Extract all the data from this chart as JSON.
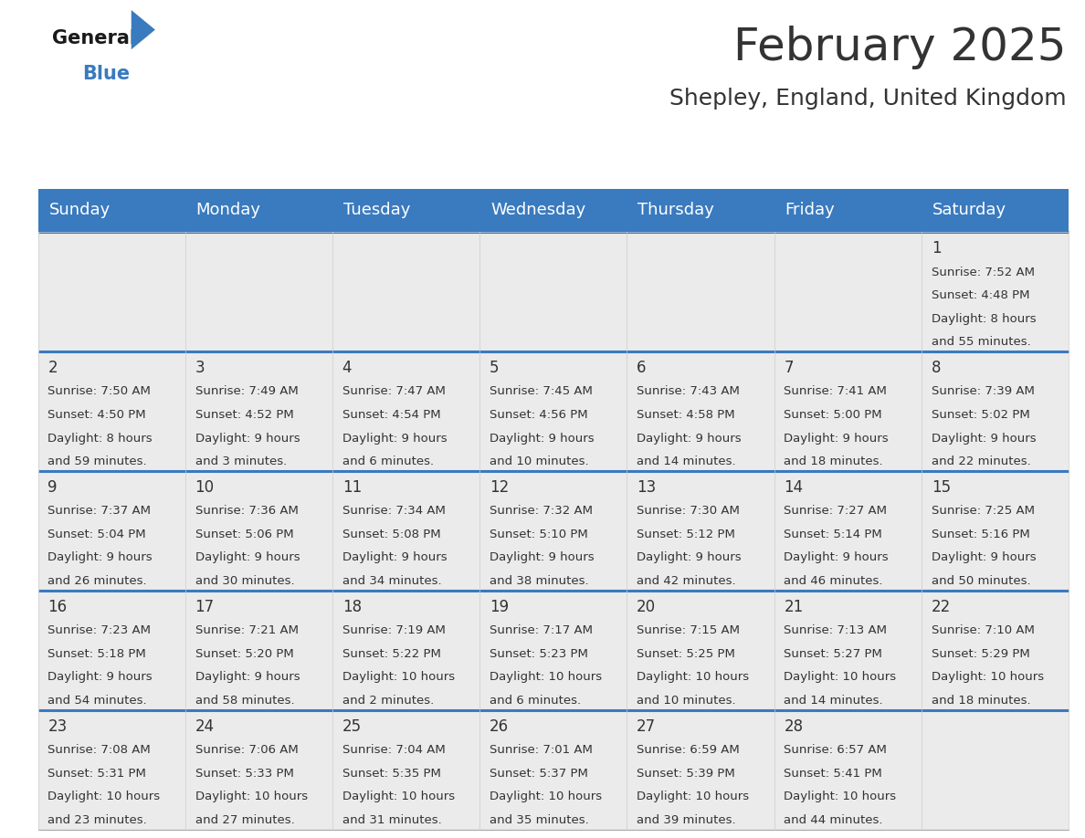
{
  "title": "February 2025",
  "subtitle": "Shepley, England, United Kingdom",
  "header_color": "#3a7abf",
  "header_text_color": "#ffffff",
  "day_names": [
    "Sunday",
    "Monday",
    "Tuesday",
    "Wednesday",
    "Thursday",
    "Friday",
    "Saturday"
  ],
  "title_fontsize": 36,
  "subtitle_fontsize": 18,
  "header_fontsize": 13,
  "cell_num_fontsize": 12,
  "cell_text_fontsize": 9.5,
  "background_color": "#ffffff",
  "cell_bg_color": "#ebebeb",
  "text_color": "#333333",
  "divider_color": "#3a7abf",
  "logo_general_color": "#1a1a1a",
  "logo_blue_color": "#3a7abf",
  "calendar_data": [
    {
      "day": 1,
      "row": 0,
      "col": 6,
      "sunrise": "7:52 AM",
      "sunset": "4:48 PM",
      "daylight": "8 hours and 55 minutes."
    },
    {
      "day": 2,
      "row": 1,
      "col": 0,
      "sunrise": "7:50 AM",
      "sunset": "4:50 PM",
      "daylight": "8 hours and 59 minutes."
    },
    {
      "day": 3,
      "row": 1,
      "col": 1,
      "sunrise": "7:49 AM",
      "sunset": "4:52 PM",
      "daylight": "9 hours and 3 minutes."
    },
    {
      "day": 4,
      "row": 1,
      "col": 2,
      "sunrise": "7:47 AM",
      "sunset": "4:54 PM",
      "daylight": "9 hours and 6 minutes."
    },
    {
      "day": 5,
      "row": 1,
      "col": 3,
      "sunrise": "7:45 AM",
      "sunset": "4:56 PM",
      "daylight": "9 hours and 10 minutes."
    },
    {
      "day": 6,
      "row": 1,
      "col": 4,
      "sunrise": "7:43 AM",
      "sunset": "4:58 PM",
      "daylight": "9 hours and 14 minutes."
    },
    {
      "day": 7,
      "row": 1,
      "col": 5,
      "sunrise": "7:41 AM",
      "sunset": "5:00 PM",
      "daylight": "9 hours and 18 minutes."
    },
    {
      "day": 8,
      "row": 1,
      "col": 6,
      "sunrise": "7:39 AM",
      "sunset": "5:02 PM",
      "daylight": "9 hours and 22 minutes."
    },
    {
      "day": 9,
      "row": 2,
      "col": 0,
      "sunrise": "7:37 AM",
      "sunset": "5:04 PM",
      "daylight": "9 hours and 26 minutes."
    },
    {
      "day": 10,
      "row": 2,
      "col": 1,
      "sunrise": "7:36 AM",
      "sunset": "5:06 PM",
      "daylight": "9 hours and 30 minutes."
    },
    {
      "day": 11,
      "row": 2,
      "col": 2,
      "sunrise": "7:34 AM",
      "sunset": "5:08 PM",
      "daylight": "9 hours and 34 minutes."
    },
    {
      "day": 12,
      "row": 2,
      "col": 3,
      "sunrise": "7:32 AM",
      "sunset": "5:10 PM",
      "daylight": "9 hours and 38 minutes."
    },
    {
      "day": 13,
      "row": 2,
      "col": 4,
      "sunrise": "7:30 AM",
      "sunset": "5:12 PM",
      "daylight": "9 hours and 42 minutes."
    },
    {
      "day": 14,
      "row": 2,
      "col": 5,
      "sunrise": "7:27 AM",
      "sunset": "5:14 PM",
      "daylight": "9 hours and 46 minutes."
    },
    {
      "day": 15,
      "row": 2,
      "col": 6,
      "sunrise": "7:25 AM",
      "sunset": "5:16 PM",
      "daylight": "9 hours and 50 minutes."
    },
    {
      "day": 16,
      "row": 3,
      "col": 0,
      "sunrise": "7:23 AM",
      "sunset": "5:18 PM",
      "daylight": "9 hours and 54 minutes."
    },
    {
      "day": 17,
      "row": 3,
      "col": 1,
      "sunrise": "7:21 AM",
      "sunset": "5:20 PM",
      "daylight": "9 hours and 58 minutes."
    },
    {
      "day": 18,
      "row": 3,
      "col": 2,
      "sunrise": "7:19 AM",
      "sunset": "5:22 PM",
      "daylight": "10 hours and 2 minutes."
    },
    {
      "day": 19,
      "row": 3,
      "col": 3,
      "sunrise": "7:17 AM",
      "sunset": "5:23 PM",
      "daylight": "10 hours and 6 minutes."
    },
    {
      "day": 20,
      "row": 3,
      "col": 4,
      "sunrise": "7:15 AM",
      "sunset": "5:25 PM",
      "daylight": "10 hours and 10 minutes."
    },
    {
      "day": 21,
      "row": 3,
      "col": 5,
      "sunrise": "7:13 AM",
      "sunset": "5:27 PM",
      "daylight": "10 hours and 14 minutes."
    },
    {
      "day": 22,
      "row": 3,
      "col": 6,
      "sunrise": "7:10 AM",
      "sunset": "5:29 PM",
      "daylight": "10 hours and 18 minutes."
    },
    {
      "day": 23,
      "row": 4,
      "col": 0,
      "sunrise": "7:08 AM",
      "sunset": "5:31 PM",
      "daylight": "10 hours and 23 minutes."
    },
    {
      "day": 24,
      "row": 4,
      "col": 1,
      "sunrise": "7:06 AM",
      "sunset": "5:33 PM",
      "daylight": "10 hours and 27 minutes."
    },
    {
      "day": 25,
      "row": 4,
      "col": 2,
      "sunrise": "7:04 AM",
      "sunset": "5:35 PM",
      "daylight": "10 hours and 31 minutes."
    },
    {
      "day": 26,
      "row": 4,
      "col": 3,
      "sunrise": "7:01 AM",
      "sunset": "5:37 PM",
      "daylight": "10 hours and 35 minutes."
    },
    {
      "day": 27,
      "row": 4,
      "col": 4,
      "sunrise": "6:59 AM",
      "sunset": "5:39 PM",
      "daylight": "10 hours and 39 minutes."
    },
    {
      "day": 28,
      "row": 4,
      "col": 5,
      "sunrise": "6:57 AM",
      "sunset": "5:41 PM",
      "daylight": "10 hours and 44 minutes."
    }
  ]
}
